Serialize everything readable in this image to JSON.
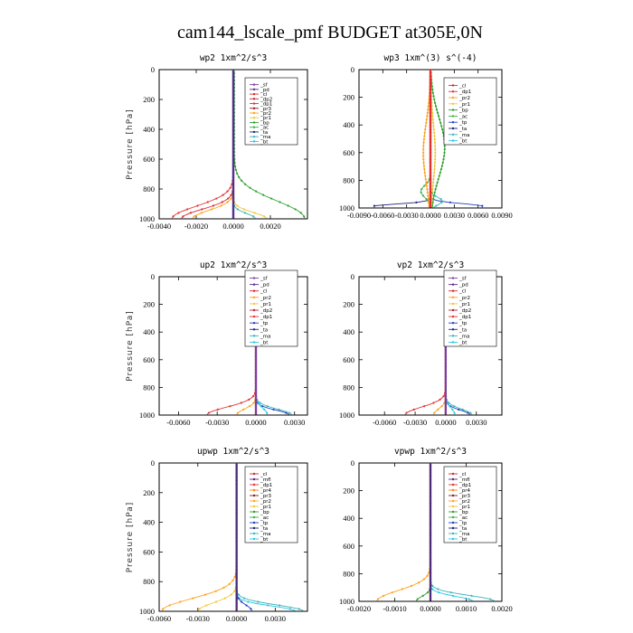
{
  "figure": {
    "title": "cam144_lscale_pmf  BUDGET at305E,0N"
  },
  "colors": {
    "sf": "#7b3fa0",
    "pd": "#5b2d8a",
    "cl": "#d62728",
    "dp2": "#c41e3a",
    "dp1": "#e03030",
    "pr2": "#ff9f1c",
    "pr1": "#f2c53d",
    "bp": "#2ca02c",
    "ac": "#3cb043",
    "tp": "#1f3fbf",
    "ta": "#1a237e",
    "ma": "#3cb4b4",
    "bt": "#29c5e6",
    "mfl": "#4b2a7a",
    "pr4": "#ff7f0e",
    "pr3": "#8b1a1a"
  },
  "chart_data": [
    {
      "type": "line",
      "title": "wp2   1xm^2/s^3",
      "ylabel": "Pressure [hPa]",
      "xlim": [
        -0.004,
        0.004
      ],
      "xticks": [
        "-0.0040",
        "-0.0020",
        "0.0000",
        "0.0020"
      ],
      "xtick_values": [
        -0.004,
        -0.002,
        0.0,
        0.002
      ],
      "ylim": [
        1000,
        0
      ],
      "yticks": [
        "0",
        "200",
        "400",
        "600",
        "800",
        "1000"
      ],
      "legend": [
        "_sf",
        "_pd",
        "_cl",
        "_dp2",
        "_dp1",
        "_pr3",
        "_pr2",
        "_pr1",
        "_bp",
        "_ac",
        "_ta",
        "_ma",
        "_bt"
      ],
      "legend_keys": [
        "sf",
        "pd",
        "cl",
        "dp2",
        "dp1",
        "pr3",
        "pr2",
        "pr1",
        "bp",
        "ac",
        "ta",
        "ma",
        "bt"
      ],
      "series": [
        {
          "key": "bp",
          "x0": 5e-05,
          "amp": 0.0038,
          "pk": 1000,
          "w": 170
        },
        {
          "key": "dp1",
          "x0": 0.0,
          "amp": -0.0033,
          "pk": 1000,
          "w": 120
        },
        {
          "key": "cl",
          "x0": 0.0,
          "amp": -0.0028,
          "pk": 1000,
          "w": 90
        },
        {
          "key": "pr2",
          "x0": 0.0,
          "amp": -0.0022,
          "pk": 1000,
          "w": 80
        },
        {
          "key": "pr1",
          "x0": 0.0,
          "amp": 0.0018,
          "pk": 1000,
          "w": 60
        },
        {
          "key": "ma",
          "x0": 0.0,
          "amp": 0.0012,
          "pk": 1000,
          "w": 50
        },
        {
          "key": "bt",
          "x0": 0.0,
          "amp": 0.0,
          "pk": 1000,
          "w": 50
        },
        {
          "key": "sf",
          "x0": 0.0,
          "amp": 0.0,
          "pk": 1000,
          "w": 50
        },
        {
          "key": "pd",
          "x0": 0.0,
          "amp": 0.0,
          "pk": 1000,
          "w": 50
        }
      ]
    },
    {
      "type": "line",
      "title": "wp3   1xm^(3) s^(-4)",
      "ylabel": "",
      "xlim": [
        -0.009,
        0.009
      ],
      "xticks": [
        "-0.0090",
        "-0.0060",
        "-0.0030",
        "0.0000",
        "0.0030",
        "0.0060",
        "0.0090"
      ],
      "xtick_values": [
        -0.009,
        -0.006,
        -0.003,
        0.0,
        0.003,
        0.006,
        0.009
      ],
      "ylim": [
        1000,
        0
      ],
      "yticks": [
        "0",
        "200",
        "400",
        "600",
        "800",
        "1000"
      ],
      "legend": [
        "_cl",
        "_dp1",
        "_pr2",
        "_pr1",
        "_bp",
        "_ac",
        "_tp",
        "_ta",
        "_ma",
        "_bt"
      ],
      "legend_keys": [
        "cl",
        "dp1",
        "pr2",
        "pr1",
        "bp",
        "ac",
        "tp",
        "ta",
        "ma",
        "bt"
      ],
      "series": [
        {
          "key": "ta",
          "x0": 0.0,
          "amp": -0.0075,
          "pk": 990,
          "w": 25
        },
        {
          "key": "tp",
          "x0": 0.0,
          "amp": 0.0068,
          "pk": 990,
          "w": 30
        },
        {
          "key": "bp",
          "x0": 0.0,
          "amp": 0.0018,
          "pk": 560,
          "w": 300
        },
        {
          "key": "ac",
          "x0": 0.0,
          "amp": -0.0012,
          "pk": 880,
          "w": 60
        },
        {
          "key": "pr2",
          "x0": 0.0,
          "amp": -0.0009,
          "pk": 600,
          "w": 300
        },
        {
          "key": "pr1",
          "x0": 0.0,
          "amp": 0.0006,
          "pk": 600,
          "w": 300
        },
        {
          "key": "ma",
          "x0": 0.0,
          "amp": 0.0015,
          "pk": 950,
          "w": 40
        },
        {
          "key": "cl",
          "x0": 0.0,
          "amp": 0.0,
          "pk": 900,
          "w": 50
        },
        {
          "key": "dp1",
          "x0": 0.0,
          "amp": 0.0,
          "pk": 900,
          "w": 50
        }
      ]
    },
    {
      "type": "line",
      "title": "up2   1xm^2/s^3",
      "ylabel": "Pressure [hPa]",
      "xlim": [
        -0.0075,
        0.004
      ],
      "xticks": [
        "-0.0060",
        "-0.0030",
        "0.0000",
        "0.0030"
      ],
      "xtick_values": [
        -0.006,
        -0.003,
        0.0,
        0.003
      ],
      "ylim": [
        1000,
        0
      ],
      "yticks": [
        "0",
        "200",
        "400",
        "600",
        "800",
        "1000"
      ],
      "legend": [
        "_sf",
        "_pd",
        "_cl",
        "_pr2",
        "_pr1",
        "_dp2",
        "_dp1",
        "_tp",
        "_ta",
        "_ma",
        "_bt"
      ],
      "legend_keys": [
        "sf",
        "pd",
        "cl",
        "pr2",
        "pr1",
        "dp2",
        "dp1",
        "tp",
        "ta",
        "ma",
        "bt"
      ],
      "series": [
        {
          "key": "dp1",
          "x0": 0.0,
          "amp": -0.0038,
          "pk": 1000,
          "w": 80
        },
        {
          "key": "pr2",
          "x0": 0.0,
          "amp": -0.0015,
          "pk": 1000,
          "w": 60
        },
        {
          "key": "ma",
          "x0": 0.0,
          "amp": 0.0028,
          "pk": 1000,
          "w": 60
        },
        {
          "key": "tp",
          "x0": 0.0,
          "amp": 0.0026,
          "pk": 1000,
          "w": 50
        },
        {
          "key": "bt",
          "x0": 0.0,
          "amp": 0.0009,
          "pk": 1000,
          "w": 70
        },
        {
          "key": "cl",
          "x0": 0.0,
          "amp": 0.0,
          "pk": 1000,
          "w": 50
        },
        {
          "key": "sf",
          "x0": 0.0,
          "amp": 0.0,
          "pk": 1000,
          "w": 50
        }
      ]
    },
    {
      "type": "line",
      "title": "vp2   1xm^2/s^3",
      "ylabel": "",
      "xlim": [
        -0.0085,
        0.0055
      ],
      "xticks": [
        "-0.0060",
        "-0.0030",
        "0.0000",
        "0.0030"
      ],
      "xtick_values": [
        -0.006,
        -0.003,
        0.0,
        0.003
      ],
      "ylim": [
        1000,
        0
      ],
      "yticks": [
        "0",
        "200",
        "400",
        "600",
        "800",
        "1000"
      ],
      "legend": [
        "_sf",
        "_pd",
        "_cl",
        "_pr2",
        "_pr1",
        "_dp2",
        "_dp1",
        "_tp",
        "_ta",
        "_ma",
        "_bt"
      ],
      "legend_keys": [
        "sf",
        "pd",
        "cl",
        "pr2",
        "pr1",
        "dp2",
        "dp1",
        "tp",
        "ta",
        "ma",
        "bt"
      ],
      "series": [
        {
          "key": "dp1",
          "x0": 0.0,
          "amp": -0.004,
          "pk": 1000,
          "w": 80
        },
        {
          "key": "pr2",
          "x0": 0.0,
          "amp": -0.0012,
          "pk": 1000,
          "w": 60
        },
        {
          "key": "ma",
          "x0": 0.0,
          "amp": 0.0026,
          "pk": 1000,
          "w": 60
        },
        {
          "key": "tp",
          "x0": 0.0,
          "amp": 0.0024,
          "pk": 1000,
          "w": 50
        },
        {
          "key": "bt",
          "x0": 0.0,
          "amp": 0.0009,
          "pk": 1000,
          "w": 70
        },
        {
          "key": "cl",
          "x0": 0.0,
          "amp": 0.0,
          "pk": 1000,
          "w": 50
        },
        {
          "key": "sf",
          "x0": 0.0,
          "amp": 0.0,
          "pk": 1000,
          "w": 50
        }
      ]
    },
    {
      "type": "line",
      "title": "upwp   1xm^2/s^3",
      "ylabel": "Pressure [hPa]",
      "xlim": [
        -0.006,
        0.0055
      ],
      "xticks": [
        "-0.0060",
        "-0.0030",
        "0.0000",
        "0.0030"
      ],
      "xtick_values": [
        -0.006,
        -0.003,
        0.0,
        0.003
      ],
      "ylim": [
        1000,
        0
      ],
      "yticks": [
        "0",
        "200",
        "400",
        "600",
        "800",
        "1000"
      ],
      "legend": [
        "_cl",
        "_mfl",
        "_dp1",
        "_pr4",
        "_pr3",
        "_pr2",
        "_pr1",
        "_bp",
        "_ac",
        "_tp",
        "_ta",
        "_ma",
        "_bt"
      ],
      "legend_keys": [
        "cl",
        "mfl",
        "dp1",
        "pr4",
        "pr3",
        "pr2",
        "pr1",
        "bp",
        "ac",
        "tp",
        "ta",
        "ma",
        "bt"
      ],
      "series": [
        {
          "key": "pr2",
          "x0": 0.0,
          "amp": -0.0058,
          "pk": 1000,
          "w": 120
        },
        {
          "key": "pr1",
          "x0": 0.0,
          "amp": -0.003,
          "pk": 1000,
          "w": 80
        },
        {
          "key": "ma",
          "x0": 0.0,
          "amp": 0.0052,
          "pk": 1000,
          "w": 60
        },
        {
          "key": "bt",
          "x0": 0.0,
          "amp": 0.0046,
          "pk": 1000,
          "w": 50
        },
        {
          "key": "tp",
          "x0": 0.0,
          "amp": 0.0012,
          "pk": 1000,
          "w": 60
        },
        {
          "key": "cl",
          "x0": 0.0,
          "amp": 0.0,
          "pk": 1000,
          "w": 50
        },
        {
          "key": "mfl",
          "x0": 0.0,
          "amp": 0.0,
          "pk": 1000,
          "w": 50
        }
      ]
    },
    {
      "type": "line",
      "title": "vpwp   1xm^2/s^3",
      "ylabel": "",
      "xlim": [
        -0.002,
        0.002
      ],
      "xticks": [
        "-0.0020",
        "-0.0010",
        "0.0000",
        "0.0010",
        "0.0020"
      ],
      "xtick_values": [
        -0.002,
        -0.001,
        0.0,
        0.001,
        0.002
      ],
      "ylim": [
        1000,
        0
      ],
      "yticks": [
        "0",
        "200",
        "400",
        "600",
        "800",
        "1000"
      ],
      "legend": [
        "_cl",
        "_mfl",
        "_dp1",
        "_pr4",
        "_pr3",
        "_pr2",
        "_pr1",
        "_bp",
        "_ac",
        "_tp",
        "_ta",
        "_ma",
        "_bt"
      ],
      "legend_keys": [
        "cl",
        "mfl",
        "dp1",
        "pr4",
        "pr3",
        "pr2",
        "pr1",
        "bp",
        "ac",
        "tp",
        "ta",
        "ma",
        "bt"
      ],
      "series": [
        {
          "key": "pr2",
          "x0": 0.0,
          "amp": -0.0015,
          "pk": 1000,
          "w": 110
        },
        {
          "key": "ma",
          "x0": 0.0,
          "amp": 0.0018,
          "pk": 1000,
          "w": 60
        },
        {
          "key": "bt",
          "x0": 0.0,
          "amp": 0.0012,
          "pk": 1000,
          "w": 50
        },
        {
          "key": "bp",
          "x0": 0.0,
          "amp": -0.0004,
          "pk": 1000,
          "w": 50
        },
        {
          "key": "cl",
          "x0": 0.0,
          "amp": 0.0,
          "pk": 1000,
          "w": 50
        },
        {
          "key": "mfl",
          "x0": 0.0,
          "amp": 0.0,
          "pk": 1000,
          "w": 50
        }
      ]
    }
  ]
}
